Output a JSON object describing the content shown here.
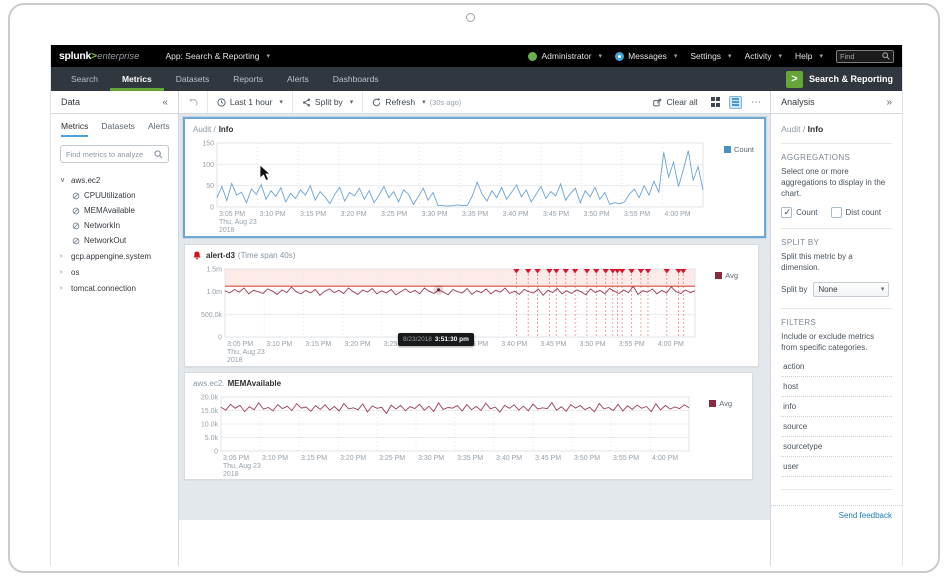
{
  "topbar": {
    "logo_main": "splunk",
    "logo_gt": ">",
    "logo_suffix": "enterprise",
    "app_menu": "App: Search & Reporting",
    "administrator": "Administrator",
    "messages": "Messages",
    "settings": "Settings",
    "activity": "Activity",
    "help": "Help",
    "find_placeholder": "Find"
  },
  "appnav": {
    "items": [
      "Search",
      "Metrics",
      "Datasets",
      "Reports",
      "Alerts",
      "Dashboards"
    ],
    "active": "Metrics",
    "brand_glyph": ">",
    "brand_name": "Search & Reporting"
  },
  "toolbar": {
    "data_label": "Data",
    "collapse_glyph": "«",
    "time_range": "Last 1 hour",
    "split_by": "Split by",
    "refresh": "Refresh",
    "refresh_ago": "(30s ago)",
    "clear_all": "Clear all",
    "more_glyph": "⋯",
    "analysis_title": "Analysis",
    "expand_glyph": "»"
  },
  "sidebar": {
    "tabs": [
      "Metrics",
      "Datasets",
      "Alerts"
    ],
    "search_placeholder": "Find metrics to analyze",
    "tree": {
      "root0": "aws.ec2",
      "root0_children": [
        "CPUUtilization",
        "MEMAvailable",
        "NetworkIn",
        "NetworkOut"
      ],
      "root1": "gcp.appengine.system",
      "root2": "os",
      "root3": "tomcat.connection"
    }
  },
  "analysis": {
    "selected_prefix": "Audit /",
    "selected_main": "Info",
    "aggregations": {
      "title": "AGGREGATIONS",
      "desc": "Select one or more aggregations to display in the chart.",
      "opt0": "Count",
      "opt1": "Dist count"
    },
    "split": {
      "title": "SPLIT BY",
      "desc": "Split this metric by a dimension.",
      "label": "Split by",
      "value": "None"
    },
    "filters": {
      "title": "FILTERS",
      "desc": "Include or exclude metrics from specific categories.",
      "items": [
        "action",
        "host",
        "info",
        "source",
        "sourcetype",
        "user"
      ]
    },
    "feedback": "Send feedback"
  },
  "chart_data": [
    {
      "type": "line",
      "title_prefix": "Audit /",
      "title_main": "Info",
      "title_suffix": "",
      "legend": "Count",
      "color": "#6ba3d6",
      "legend_color": "#4a90c4",
      "ylim": [
        0,
        150
      ],
      "yticks": [
        {
          "v": 0,
          "l": "0"
        },
        {
          "v": 50,
          "l": "50"
        },
        {
          "v": 100,
          "l": "100"
        },
        {
          "v": 150,
          "l": "150"
        }
      ],
      "xticks": [
        "3:05 PM",
        "3:10 PM",
        "3:15 PM",
        "3:20 PM",
        "3:25 PM",
        "3:30 PM",
        "3:35 PM",
        "3:40 PM",
        "3:45 PM",
        "3:50 PM",
        "3:55 PM",
        "4:00 PM"
      ],
      "x_date": [
        "Thu, Aug 23",
        "2018"
      ],
      "values": [
        22,
        48,
        15,
        55,
        28,
        35,
        10,
        42,
        30,
        52,
        18,
        38,
        25,
        45,
        12,
        32,
        20,
        40,
        28,
        50,
        16,
        36,
        24,
        8,
        30,
        46,
        14,
        34,
        26,
        44,
        18,
        38,
        10,
        28,
        48,
        22,
        36,
        12,
        40,
        30,
        6,
        24,
        44,
        16,
        34,
        4,
        3,
        2,
        3,
        5,
        3,
        4,
        26,
        58,
        30,
        14,
        38,
        22,
        46,
        18,
        34,
        52,
        24,
        40,
        12,
        30,
        48,
        20,
        36,
        26,
        54,
        16,
        32,
        44,
        10,
        38,
        24,
        46,
        18,
        34,
        6,
        10,
        8,
        12,
        30,
        42,
        22,
        50,
        28,
        60,
        35,
        128,
        70,
        105,
        48,
        88,
        132,
        62,
        95,
        40
      ]
    },
    {
      "type": "line",
      "title_prefix": "",
      "title_main": "alert-d3",
      "title_suffix": "(Time span 40s)",
      "legend": "Avg",
      "color": "#9a4055",
      "legend_color": "#8a2a3d",
      "ylim": [
        0,
        1.5
      ],
      "yticks": [
        {
          "v": 0,
          "l": "0"
        },
        {
          "v": 0.5,
          "l": "500.0k"
        },
        {
          "v": 1.0,
          "l": "1.0m"
        },
        {
          "v": 1.5,
          "l": "1.5m"
        }
      ],
      "xticks": [
        "3:05 PM",
        "3:10 PM",
        "3:15 PM",
        "3:20 PM",
        "3:25 PM",
        "3:30 PM",
        "3:35 PM",
        "3:40 PM",
        "3:45 PM",
        "3:50 PM",
        "3:55 PM",
        "4:00 PM"
      ],
      "x_date": [
        "Thu, Aug 23",
        "2018"
      ],
      "threshold": 1.12,
      "band": [
        1.12,
        1.5
      ],
      "markers": [
        0.62,
        0.645,
        0.665,
        0.69,
        0.705,
        0.725,
        0.745,
        0.77,
        0.79,
        0.81,
        0.825,
        0.835,
        0.845,
        0.865,
        0.885,
        0.9,
        0.94,
        0.965,
        0.975
      ],
      "highlight_index": 45,
      "tooltip": {
        "date": "8/23/2018",
        "time": "3:51:30 pm"
      },
      "values": [
        1.02,
        0.97,
        1.05,
        0.99,
        1.08,
        0.95,
        1.03,
        1.0,
        0.96,
        1.06,
        1.01,
        0.94,
        1.04,
        0.98,
        1.1,
        1.0,
        0.95,
        1.03,
        0.97,
        1.05,
        0.92,
        1.01,
        1.06,
        0.98,
        1.03,
        0.96,
        1.08,
        1.0,
        0.94,
        1.04,
        0.99,
        1.07,
        0.95,
        1.02,
        0.97,
        1.05,
        0.93,
        1.0,
        1.06,
        0.98,
        1.03,
        0.95,
        1.08,
        1.01,
        0.96,
        1.04,
        0.99,
        0.93,
        1.05,
        1.0,
        0.97,
        1.07,
        0.94,
        1.02,
        0.98,
        1.06,
        0.95,
        1.03,
        0.99,
        1.08,
        0.96,
        1.01,
        0.94,
        1.05,
        1.0,
        0.97,
        1.06,
        0.92,
        1.03,
        0.98,
        1.07,
        0.95,
        1.02,
        0.96,
        1.04,
        1.0,
        0.93,
        1.06,
        0.98,
        1.03,
        0.95,
        1.07,
        1.01,
        0.96,
        1.04,
        0.98,
        1.12,
        0.94,
        1.02,
        0.99,
        1.06,
        0.95,
        1.03,
        0.97,
        1.11,
        1.0,
        0.96,
        1.04,
        0.98,
        1.02
      ]
    },
    {
      "type": "line",
      "title_prefix": "aws.ec2.",
      "title_main": "MEMAvailable",
      "title_suffix": "",
      "legend": "Avg",
      "color": "#9a4055",
      "legend_color": "#8a2a3d",
      "ylim": [
        0,
        20
      ],
      "yticks": [
        {
          "v": 0,
          "l": "0"
        },
        {
          "v": 5,
          "l": "5.0k"
        },
        {
          "v": 10,
          "l": "10.0k"
        },
        {
          "v": 15,
          "l": "15.0k"
        },
        {
          "v": 20,
          "l": "20.0k"
        }
      ],
      "xticks": [
        "3:05 PM",
        "3:10 PM",
        "3:15 PM",
        "3:20 PM",
        "3:25 PM",
        "3:30 PM",
        "3:35 PM",
        "3:40 PM",
        "3:45 PM",
        "3:50 PM",
        "3:55 PM",
        "4:00 PM"
      ],
      "x_date": [
        "Thu, Aug 23",
        "2018"
      ],
      "values": [
        16.2,
        15.1,
        17.3,
        15.8,
        16.9,
        14.6,
        16.4,
        15.3,
        17.8,
        15.5,
        16.1,
        14.9,
        17.2,
        15.7,
        16.6,
        15.0,
        17.5,
        15.9,
        16.3,
        14.7,
        16.8,
        15.4,
        17.1,
        15.2,
        16.5,
        14.8,
        17.6,
        15.6,
        16.0,
        15.3,
        17.4,
        14.5,
        16.7,
        15.8,
        16.2,
        13.9,
        17.0,
        15.5,
        16.9,
        14.9,
        16.4,
        15.7,
        17.3,
        15.1,
        16.6,
        14.6,
        17.8,
        15.4,
        16.1,
        15.9,
        16.8,
        14.8,
        17.2,
        15.3,
        16.5,
        15.0,
        17.7,
        15.6,
        16.3,
        14.4,
        16.9,
        15.8,
        17.1,
        15.2,
        16.6,
        14.9,
        17.4,
        15.5,
        16.0,
        15.7,
        17.9,
        15.1,
        16.4,
        14.7,
        17.2,
        15.9,
        16.8,
        15.3,
        16.2,
        14.5,
        17.6,
        15.6,
        16.1,
        15.0,
        17.3,
        14.8,
        16.7,
        15.4,
        17.0,
        15.8,
        16.5,
        14.6,
        17.5,
        15.2,
        16.9,
        15.5,
        16.3,
        15.7,
        17.1,
        16.0
      ]
    }
  ]
}
